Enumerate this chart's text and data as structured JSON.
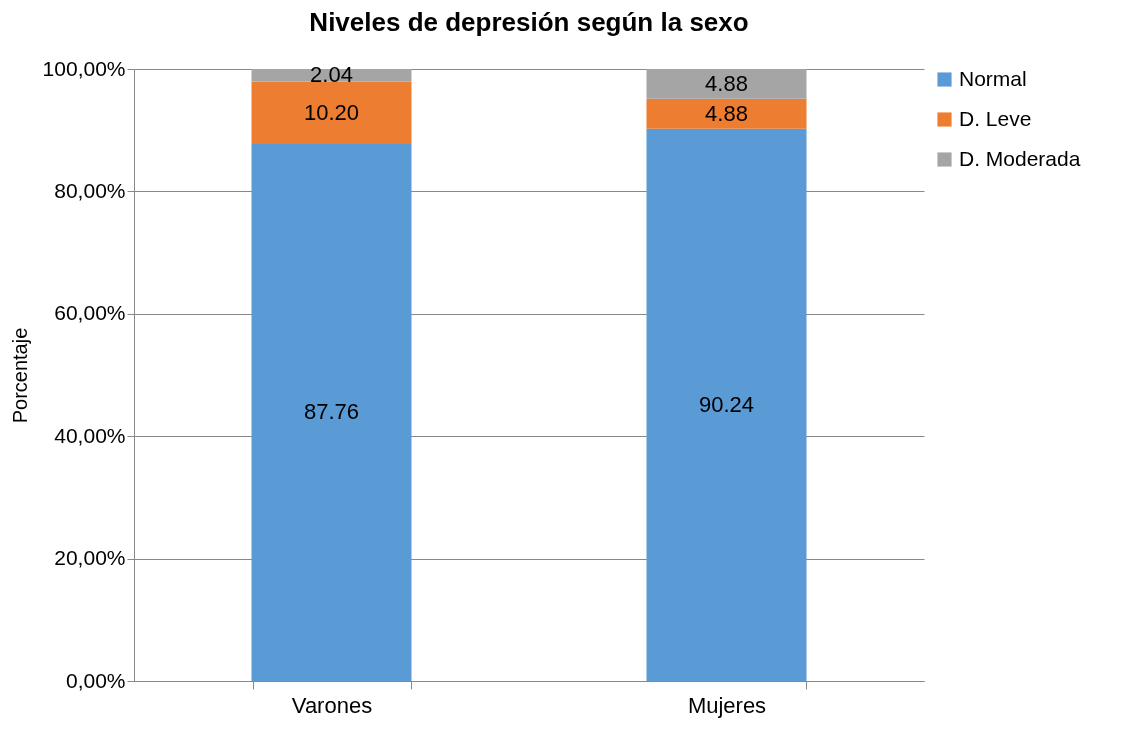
{
  "chart_data": {
    "type": "bar",
    "title": "Niveles de depresión según la sexo",
    "ylabel": "Porcentaje",
    "categories": [
      "Varones",
      "Mujeres"
    ],
    "stacked": true,
    "series": [
      {
        "name": "Normal",
        "color": "#5b9bd5",
        "values": [
          87.76,
          90.24
        ],
        "value_labels": [
          "87.76",
          "90.24"
        ]
      },
      {
        "name": "D. Leve",
        "color": "#ed7d31",
        "values": [
          10.2,
          4.88
        ],
        "value_labels": [
          "10.20",
          "4.88"
        ]
      },
      {
        "name": "D. Moderada",
        "color": "#a5a5a5",
        "values": [
          2.04,
          4.88
        ],
        "value_labels": [
          "2.04",
          "4.88"
        ]
      }
    ],
    "ylim": [
      0,
      100
    ],
    "yticks": [
      {
        "value": 0,
        "label": "0,00%"
      },
      {
        "value": 20,
        "label": "20,00%"
      },
      {
        "value": 40,
        "label": "40,00%"
      },
      {
        "value": 60,
        "label": "60,00%"
      },
      {
        "value": 80,
        "label": "80,00%"
      },
      {
        "value": 100,
        "label": "100,00%"
      }
    ],
    "grid": "y",
    "legend": "right"
  }
}
